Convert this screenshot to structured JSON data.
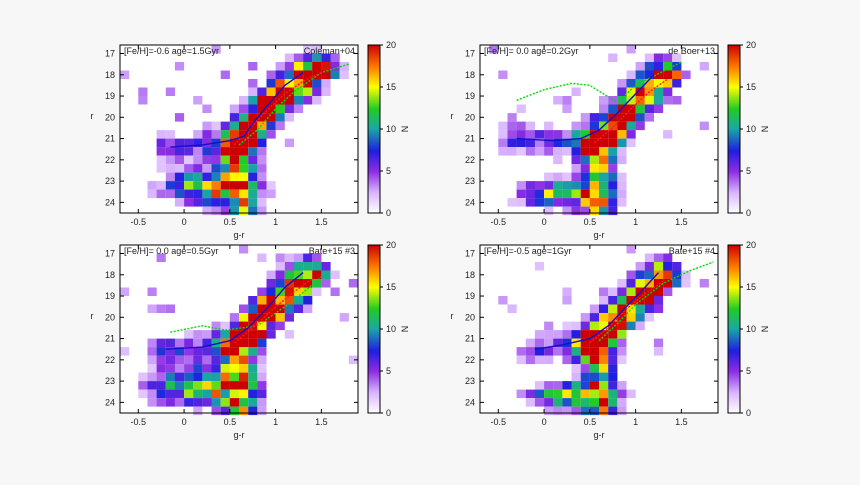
{
  "colors": {
    "background": "#f7f7f7",
    "plot_bg": "#ffffff",
    "isochrone_main": "#1111cc",
    "isochrone_alt": "#00dd00",
    "fit_track": "#ff1a1a"
  },
  "colorbar": {
    "ticks": [
      0,
      5,
      10,
      15,
      20
    ],
    "label": "N",
    "range": [
      0,
      20
    ]
  },
  "chart_data": [
    {
      "type": "heatmap",
      "title_left": "[Fe/H]=-0.6 age=1.5Gyr",
      "title_right": "Coleman+04",
      "xlabel": "g-r",
      "ylabel": "r",
      "xlim": [
        -0.7,
        1.9
      ],
      "ylim": [
        24.5,
        16.6
      ],
      "xticks": [
        -0.5,
        0,
        0.5,
        1,
        1.5
      ],
      "yticks": [
        17,
        18,
        19,
        20,
        21,
        22,
        23,
        24
      ],
      "isochrone": [
        [
          -0.15,
          21.4
        ],
        [
          0.2,
          21.3
        ],
        [
          0.5,
          21.1
        ],
        [
          0.65,
          20.9
        ],
        [
          0.75,
          20.3
        ],
        [
          0.9,
          19.5
        ],
        [
          1.1,
          18.5
        ],
        [
          1.3,
          17.9
        ]
      ],
      "isochrone_alt": [
        [
          0.6,
          21.3
        ],
        [
          0.8,
          20.6
        ],
        [
          1.0,
          19.6
        ],
        [
          1.2,
          18.8
        ],
        [
          1.5,
          17.9
        ],
        [
          1.8,
          17.5
        ]
      ],
      "track": [
        [
          0.55,
          21.3
        ],
        [
          0.7,
          20.6
        ],
        [
          0.9,
          19.7
        ],
        [
          1.1,
          18.9
        ],
        [
          1.3,
          18.3
        ],
        [
          1.5,
          17.9
        ]
      ],
      "features": {
        "lower_turnoff_center": [
          0.3,
          23.3
        ],
        "lower_turnoff_spread": [
          0.5,
          0.8
        ]
      }
    },
    {
      "type": "heatmap",
      "title_left": "[Fe/H]= 0.0 age=0.2Gyr",
      "title_right": "de Boer+13",
      "xlabel": "g-r",
      "ylabel": "r",
      "xlim": [
        -0.7,
        1.9
      ],
      "ylim": [
        24.5,
        16.6
      ],
      "xticks": [
        -0.5,
        0,
        0.5,
        1,
        1.5
      ],
      "yticks": [
        17,
        18,
        19,
        20,
        21,
        22,
        23,
        24
      ],
      "isochrone": [
        [
          -0.3,
          21.0
        ],
        [
          0.1,
          21.1
        ],
        [
          0.4,
          21.0
        ],
        [
          0.6,
          20.6
        ],
        [
          0.8,
          19.8
        ],
        [
          1.0,
          18.9
        ],
        [
          1.2,
          18.0
        ]
      ],
      "isochrone_alt": [
        [
          -0.3,
          19.2
        ],
        [
          0.0,
          18.7
        ],
        [
          0.3,
          18.4
        ],
        [
          0.5,
          18.5
        ],
        [
          0.8,
          19.3
        ],
        [
          1.0,
          18.5
        ],
        [
          1.5,
          17.4
        ]
      ],
      "track": [
        [
          0.55,
          21.2
        ],
        [
          0.75,
          20.5
        ],
        [
          0.95,
          19.6
        ],
        [
          1.15,
          18.8
        ],
        [
          1.35,
          18.2
        ]
      ],
      "features": {
        "lower_turnoff_center": [
          0.2,
          23.6
        ],
        "lower_turnoff_spread": [
          0.45,
          0.6
        ]
      }
    },
    {
      "type": "heatmap",
      "title_left": "[Fe/H]= 0.0 age=0.5Gyr",
      "title_right": "Bate+15 #3",
      "xlabel": "g-r",
      "ylabel": "r",
      "xlim": [
        -0.7,
        1.9
      ],
      "ylim": [
        24.5,
        16.6
      ],
      "xticks": [
        -0.5,
        0,
        0.5,
        1,
        1.5
      ],
      "yticks": [
        17,
        18,
        19,
        20,
        21,
        22,
        23,
        24
      ],
      "isochrone": [
        [
          -0.2,
          21.5
        ],
        [
          0.2,
          21.4
        ],
        [
          0.5,
          21.1
        ],
        [
          0.7,
          20.5
        ],
        [
          0.9,
          19.6
        ],
        [
          1.1,
          18.6
        ],
        [
          1.3,
          17.9
        ]
      ],
      "isochrone_alt": [
        [
          -0.15,
          20.7
        ],
        [
          0.2,
          20.4
        ],
        [
          0.45,
          20.6
        ],
        [
          0.8,
          20.4
        ],
        [
          1.2,
          19.2
        ],
        [
          1.5,
          18.1
        ]
      ],
      "track": [
        [
          0.55,
          21.2
        ],
        [
          0.75,
          20.5
        ],
        [
          0.95,
          19.7
        ],
        [
          1.2,
          18.8
        ],
        [
          1.4,
          18.2
        ]
      ],
      "features": {
        "lower_turnoff_center": [
          0.2,
          23.3
        ],
        "lower_turnoff_spread": [
          0.55,
          0.9
        ]
      }
    },
    {
      "type": "heatmap",
      "title_left": "[Fe/H]=-0.5 age=1Gyr",
      "title_right": "Bate+15 #4",
      "xlabel": "g-r",
      "ylabel": "r",
      "xlim": [
        -0.7,
        1.9
      ],
      "ylim": [
        24.5,
        16.6
      ],
      "xticks": [
        -0.5,
        0,
        0.5,
        1,
        1.5
      ],
      "yticks": [
        17,
        18,
        19,
        20,
        21,
        22,
        23,
        24
      ],
      "isochrone": [
        [
          -0.1,
          21.5
        ],
        [
          0.2,
          21.3
        ],
        [
          0.5,
          21.0
        ],
        [
          0.7,
          20.4
        ],
        [
          0.9,
          19.5
        ],
        [
          1.1,
          18.6
        ],
        [
          1.25,
          17.9
        ]
      ],
      "isochrone_alt": [
        [
          0.6,
          21.1
        ],
        [
          0.8,
          20.3
        ],
        [
          1.0,
          19.4
        ],
        [
          1.3,
          18.4
        ],
        [
          1.6,
          17.8
        ],
        [
          1.85,
          17.4
        ]
      ],
      "track": [
        [
          0.5,
          21.2
        ],
        [
          0.7,
          20.5
        ],
        [
          0.9,
          19.6
        ],
        [
          1.1,
          18.9
        ],
        [
          1.3,
          18.3
        ]
      ],
      "features": {
        "lower_turnoff_center": [
          0.3,
          23.7
        ],
        "lower_turnoff_spread": [
          0.45,
          0.6
        ]
      }
    }
  ]
}
